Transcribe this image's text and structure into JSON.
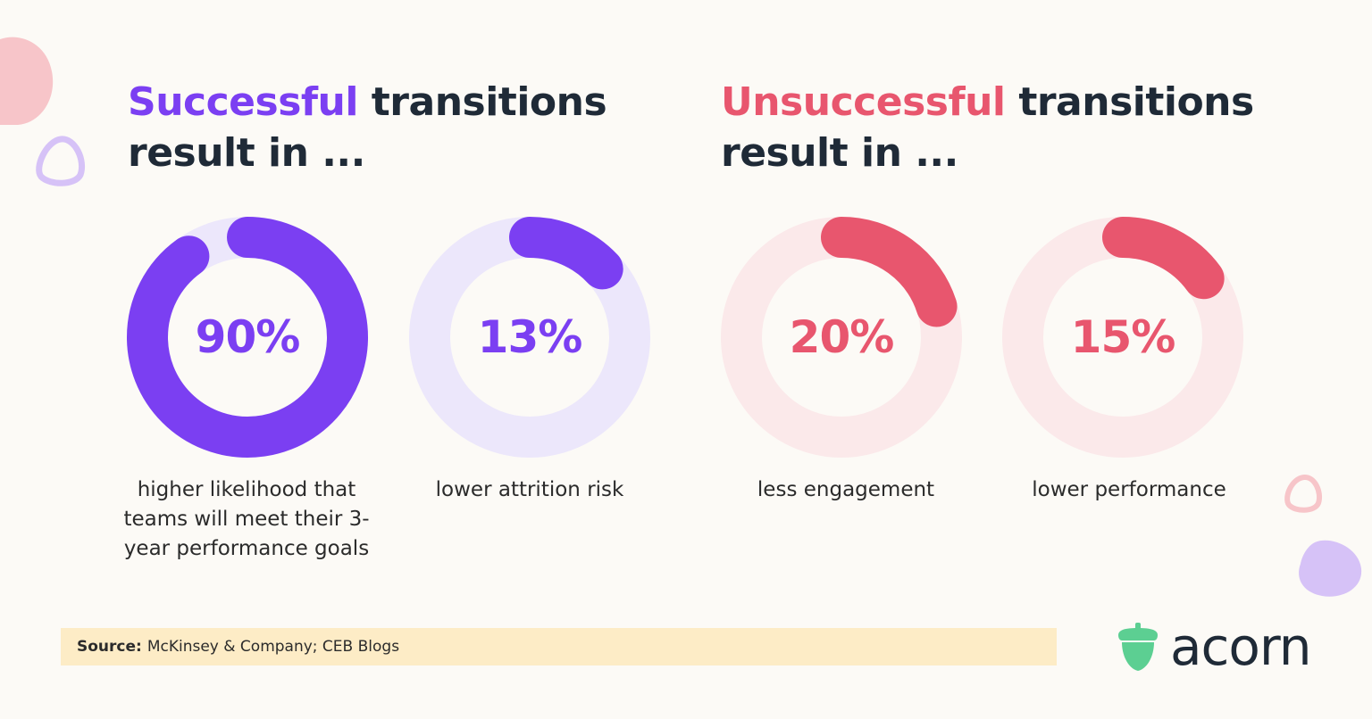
{
  "headings": {
    "left": {
      "accent": "Successful",
      "rest": " transitions result in ...",
      "accent_color": "#7b3ff2"
    },
    "right": {
      "accent": "Unsuccessful",
      "rest": " transitions result in ...",
      "accent_color": "#e8566e"
    }
  },
  "chart_data": {
    "type": "pie",
    "charts": [
      {
        "value": 90,
        "label": "90%",
        "caption": "higher likelihood that teams will meet their 3-year performance goals",
        "color": "#7b3ff2",
        "track_color": "#ece7fb"
      },
      {
        "value": 13,
        "label": "13%",
        "caption": "lower attrition risk",
        "color": "#7b3ff2",
        "track_color": "#ece7fb"
      },
      {
        "value": 20,
        "label": "20%",
        "caption": "less engagement",
        "color": "#e8566e",
        "track_color": "#fbe9ea"
      },
      {
        "value": 15,
        "label": "15%",
        "caption": "lower performance",
        "color": "#e8566e",
        "track_color": "#fbe9ea"
      }
    ]
  },
  "source": {
    "label": "Source:",
    "text": "McKinsey & Company; CEB Blogs"
  },
  "brand": {
    "name": "acorn",
    "icon": "acorn-icon",
    "icon_color": "#5ccf92"
  },
  "colors": {
    "background": "#fcfaf6",
    "source_bar": "#fdecc6",
    "pink_blob": "#f7c5c9",
    "lilac_blob": "#d6c2f7"
  }
}
